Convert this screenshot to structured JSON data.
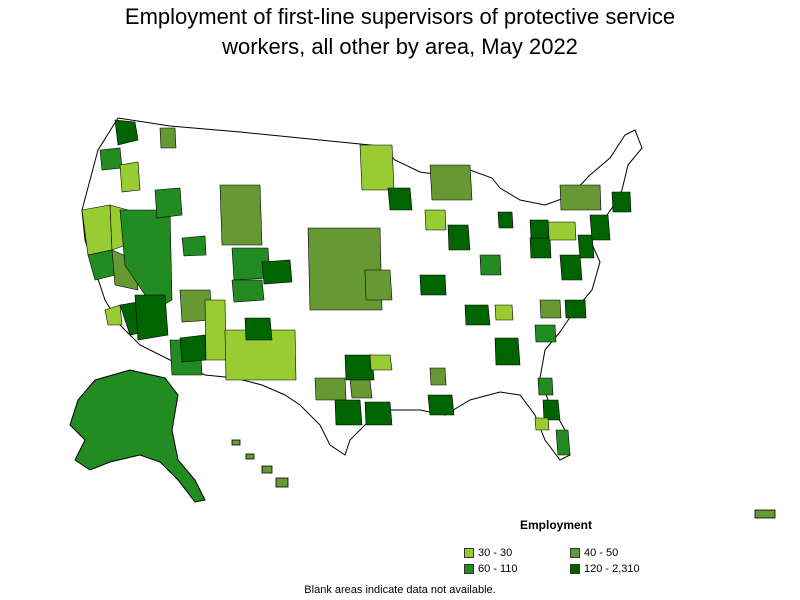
{
  "title": {
    "line1": "Employment of first-line supervisors of protective service",
    "line2": "workers, all other by area, May 2022"
  },
  "legend": {
    "title": "Employment",
    "items": [
      {
        "label": "30 - 30",
        "color": "#99cc33"
      },
      {
        "label": "40 - 50",
        "color": "#669933"
      },
      {
        "label": "60 - 110",
        "color": "#228b22"
      },
      {
        "label": "120 - 2,310",
        "color": "#006400"
      }
    ]
  },
  "note": "Blank areas indicate data not available.",
  "colors": {
    "none": "#ffffff",
    "c1": "#99cc33",
    "c2": "#669933",
    "c3": "#228b22",
    "c4": "#006400",
    "outline": "#000000"
  }
}
